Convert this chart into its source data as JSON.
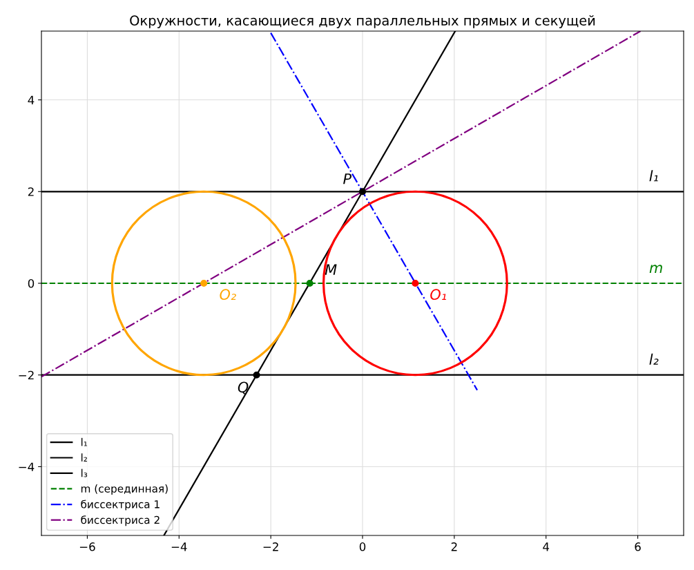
{
  "chart_data": {
    "type": "line",
    "title": "Окружности, касающиеся двух параллельных прямых и секущей",
    "xlim": [
      -7,
      7
    ],
    "ylim": [
      -5.5,
      5.5
    ],
    "xticks": [
      {
        "value": -6,
        "label": "−6"
      },
      {
        "value": -4,
        "label": "−4"
      },
      {
        "value": -2,
        "label": "−2"
      },
      0,
      2,
      4,
      6
    ],
    "yticks": [
      {
        "value": -4,
        "label": "−4"
      },
      {
        "value": -2,
        "label": "−2"
      },
      0,
      2,
      4
    ],
    "grid": true,
    "legend": "bottom left",
    "series": [
      {
        "name": "l₁",
        "color": "#000000",
        "x": [
          -7,
          7
        ],
        "values": [
          2,
          2
        ]
      },
      {
        "name": "l₂",
        "color": "#000000",
        "x": [
          -7,
          7
        ],
        "values": [
          -2,
          -2
        ]
      },
      {
        "name": "l₃",
        "color": "#000000",
        "x": [
          -4.33,
          2.02
        ],
        "values": [
          -5.5,
          5.5
        ]
      },
      {
        "name": "m (серединная)",
        "color": "#008000",
        "line_style": "dashed",
        "x": [
          -7,
          7
        ],
        "values": [
          0,
          0
        ]
      },
      {
        "name": "биссектриса 1",
        "color": "#0000ff",
        "line_style": "dashdot",
        "x": [
          -2.0,
          2.5
        ],
        "values": [
          5.46,
          -2.33
        ]
      },
      {
        "name": "биссектриса 2",
        "color": "#800080",
        "line_style": "dashdot",
        "x": [
          -7,
          6.06
        ],
        "values": [
          -2.04,
          5.5
        ]
      },
      {
        "type": "scatter",
        "marker": "circle",
        "x": [
          0,
          -2.31,
          -1.15,
          1.15,
          -3.46
        ],
        "values": [
          2,
          -2,
          0,
          0,
          0
        ],
        "colors": [
          "#000000",
          "#000000",
          "#008000",
          "#ff0000",
          "#ffa500"
        ]
      }
    ],
    "annotations": [
      {
        "text": "P",
        "x": 0,
        "y": 2
      },
      {
        "text": "Q",
        "x": -2.31,
        "y": -2
      },
      {
        "text": "M",
        "x": -1.15,
        "y": 0
      },
      {
        "text": "O₁",
        "x": 1.15,
        "y": 0
      },
      {
        "text": "O₂",
        "x": -3.46,
        "y": 0
      },
      {
        "text": "l₁",
        "x": 6.35,
        "y": 2
      },
      {
        "text": "l₂",
        "x": 6.35,
        "y": -2
      },
      {
        "text": "m",
        "x": 6.4,
        "y": 0
      }
    ]
  }
}
